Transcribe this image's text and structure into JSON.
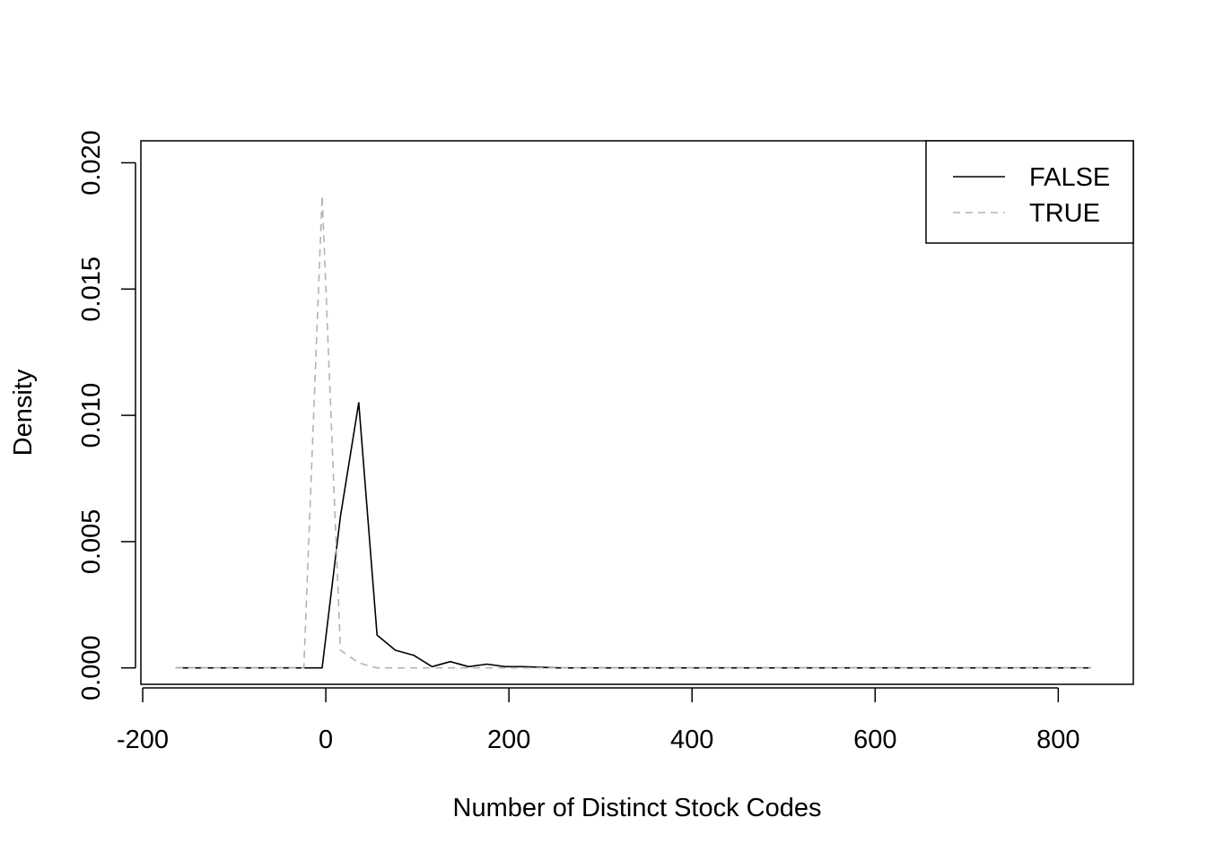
{
  "chart_data": {
    "type": "line",
    "title": "",
    "xlabel": "Number of Distinct Stock Codes",
    "ylabel": "Density",
    "xlim": [
      -202,
      882
    ],
    "ylim": [
      -0.00065,
      0.02087
    ],
    "x_ticks": [
      -200,
      0,
      200,
      400,
      600,
      800
    ],
    "x_tick_labels": [
      "-200",
      "0",
      "200",
      "400",
      "600",
      "800"
    ],
    "y_ticks": [
      0.0,
      0.005,
      0.01,
      0.015,
      0.02
    ],
    "y_tick_labels": [
      "0.000",
      "0.005",
      "0.010",
      "0.015",
      "0.020"
    ],
    "grid": false,
    "legend_position": "top-right",
    "series": [
      {
        "name": "FALSE",
        "color": "#000000",
        "dash": "solid",
        "x": [
          -164,
          -144,
          -124,
          -104,
          -84,
          -64,
          -44,
          -24,
          -4,
          16,
          36,
          56,
          76,
          96,
          116,
          136,
          156,
          176,
          196,
          216,
          236,
          256,
          276,
          296,
          316,
          336,
          356,
          376,
          396,
          416,
          436,
          456,
          476,
          496,
          516,
          536,
          556,
          576,
          596,
          616,
          636,
          656,
          676,
          696,
          716,
          736,
          756,
          776,
          796,
          816,
          836
        ],
        "y": [
          0,
          0,
          0,
          0,
          0,
          0,
          0,
          0,
          0,
          0.006,
          0.0105,
          0.0013,
          0.0007,
          0.0005,
          5e-05,
          0.00025,
          5e-05,
          0.00015,
          5e-05,
          5e-05,
          2e-05,
          0,
          0,
          0,
          0,
          0,
          0,
          0,
          0,
          0,
          0,
          0,
          0,
          0,
          0,
          0,
          0,
          0,
          0,
          0,
          0,
          0,
          0,
          0,
          0,
          0,
          0,
          0,
          0,
          0,
          0
        ]
      },
      {
        "name": "TRUE",
        "color": "#b3b3b3",
        "dash": "dashed",
        "x": [
          -164,
          -144,
          -124,
          -104,
          -84,
          -64,
          -44,
          -24,
          -4,
          16,
          36,
          56,
          76,
          96,
          116,
          136,
          156,
          176,
          196,
          216,
          236,
          256,
          276,
          296,
          316,
          336,
          356,
          376,
          396,
          416,
          436,
          456,
          476,
          496,
          516,
          536,
          556,
          576,
          596,
          616,
          636,
          656,
          676,
          696,
          716,
          736,
          756,
          776,
          796,
          816,
          836
        ],
        "y": [
          0,
          0,
          0,
          0,
          0,
          0,
          0,
          0,
          0.0187,
          0.0007,
          0.0002,
          0,
          0,
          0,
          0,
          0,
          0,
          0,
          0,
          0,
          0,
          0,
          0,
          0,
          0,
          0,
          0,
          0,
          0,
          0,
          0,
          0,
          0,
          0,
          0,
          0,
          0,
          0,
          0,
          0,
          0,
          0,
          0,
          0,
          0,
          0,
          0,
          0,
          0,
          0,
          0
        ]
      }
    ]
  }
}
